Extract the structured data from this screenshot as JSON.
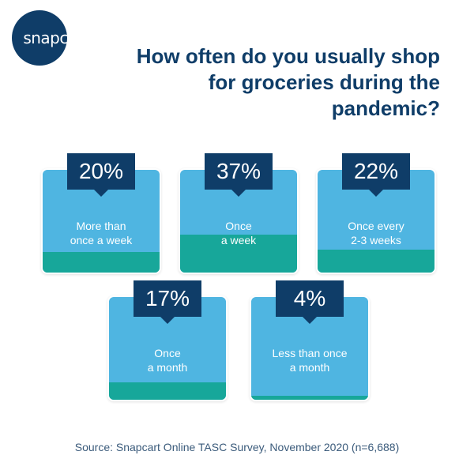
{
  "brand": {
    "logo_text": "snapcart"
  },
  "title": "How often do you usually shop for groceries during the pandemic?",
  "source": "Source: Snapcart Online TASC Survey, November 2020 (n=6,688)",
  "colors": {
    "dark_navy": "#0f3d68",
    "light_blue": "#4fb5e1",
    "teal": "#17a79a"
  },
  "chart_data": {
    "type": "bar",
    "title": "How often do you usually shop for groceries during the pandemic?",
    "categories": [
      "More than once a week",
      "Once a week",
      "Once every 2-3 weeks",
      "Once a month",
      "Less than once a month"
    ],
    "values": [
      20,
      37,
      22,
      17,
      4
    ],
    "unit": "%",
    "cards": [
      {
        "value_label": "20%",
        "label": "More than\nonce a week",
        "value": 20
      },
      {
        "value_label": "37%",
        "label": "Once\na week",
        "value": 37
      },
      {
        "value_label": "22%",
        "label": "Once every\n2-3 weeks",
        "value": 22
      },
      {
        "value_label": "17%",
        "label": "Once\na month",
        "value": 17
      },
      {
        "value_label": "4%",
        "label": "Less than once\na month",
        "value": 4
      }
    ]
  }
}
